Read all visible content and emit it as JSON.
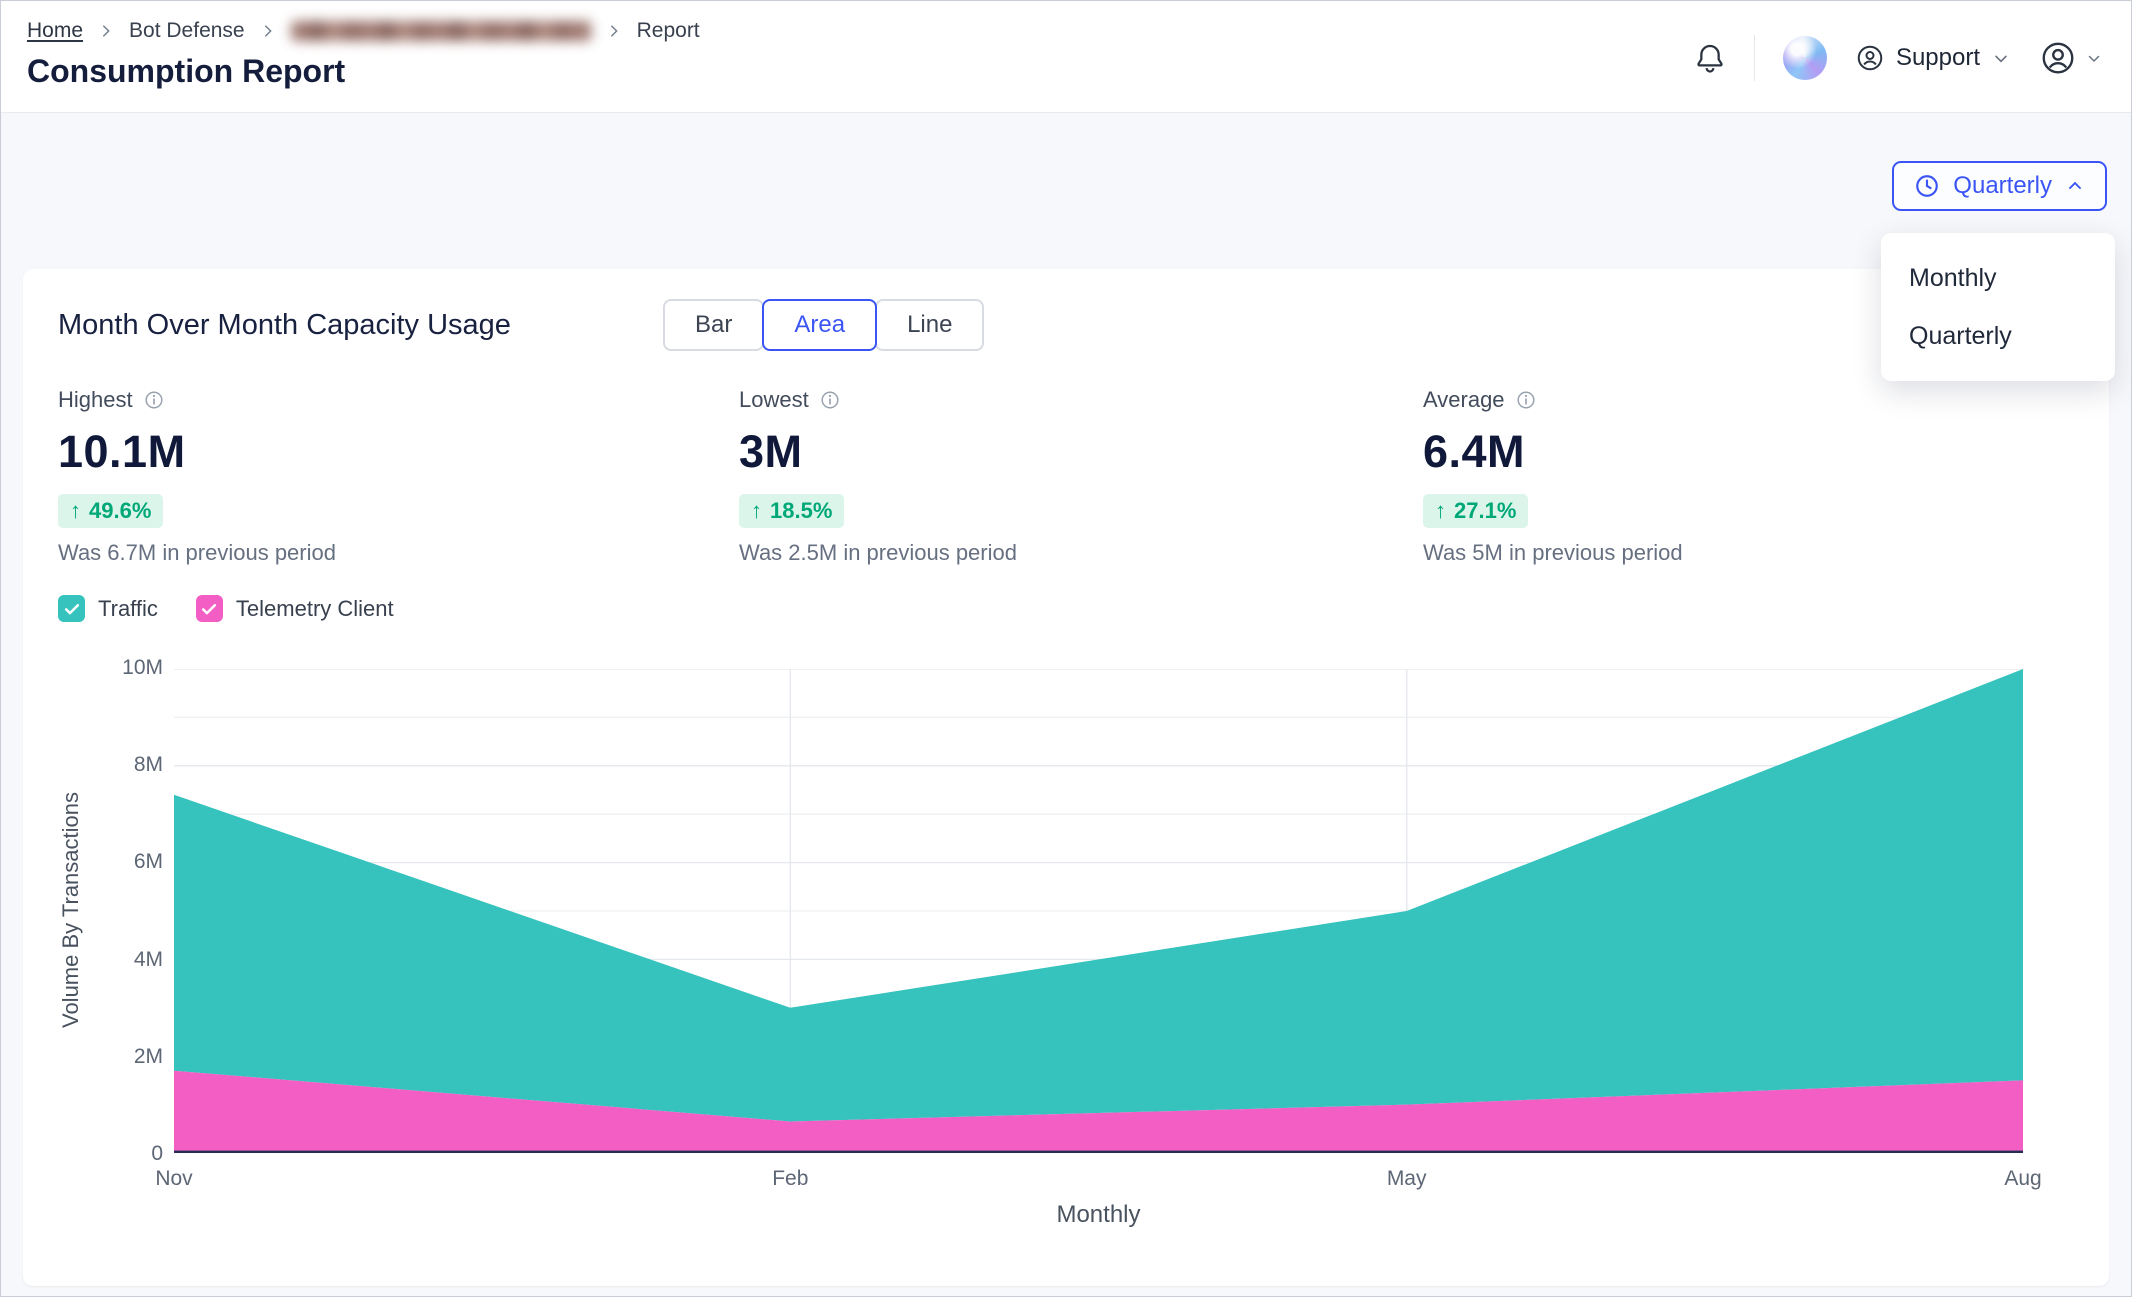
{
  "colors": {
    "accent": "#3B55F5",
    "positive": "#00A878",
    "positive_bg": "#DCF5EA",
    "teal": "#36C3BD",
    "pink": "#F25EC4",
    "navy": "#10193A"
  },
  "breadcrumb": {
    "items": [
      {
        "label": "Home"
      },
      {
        "label": "Bot Defense"
      },
      {
        "label": "",
        "redacted": true
      },
      {
        "label": "Report"
      }
    ]
  },
  "page": {
    "title": "Consumption Report"
  },
  "header": {
    "support_label": "Support"
  },
  "period_selector": {
    "button_label": "Quarterly",
    "menu_open": true,
    "options": [
      "Monthly",
      "Quarterly"
    ],
    "selected": "Quarterly"
  },
  "card": {
    "title": "Month Over Month Capacity Usage",
    "chart_type_toggle": {
      "options": [
        "Bar",
        "Area",
        "Line"
      ],
      "selected": "Area"
    },
    "stats": [
      {
        "label": "Highest",
        "value": "10.1M",
        "change": "49.6%",
        "direction": "up",
        "note": "Was 6.7M in previous period"
      },
      {
        "label": "Lowest",
        "value": "3M",
        "change": "18.5%",
        "direction": "up",
        "note": "Was 2.5M in previous period"
      },
      {
        "label": "Average",
        "value": "6.4M",
        "change": "27.1%",
        "direction": "up",
        "note": "Was 5M in previous period"
      }
    ],
    "legend": [
      {
        "label": "Traffic",
        "color": "#36C3BD",
        "checked": true
      },
      {
        "label": "Telemetry Client",
        "color": "#F25EC4",
        "checked": true
      }
    ]
  },
  "chart_data": {
    "type": "area",
    "stacked": true,
    "x": [
      "Nov",
      "Feb",
      "May",
      "Aug"
    ],
    "series": [
      {
        "name": "Telemetry Client",
        "color": "#F25EC4",
        "values": [
          1.7,
          0.65,
          1.0,
          1.5
        ]
      },
      {
        "name": "Traffic",
        "color": "#36C3BD",
        "values": [
          5.7,
          2.35,
          4.0,
          8.6
        ]
      }
    ],
    "totals": [
      7.4,
      3.0,
      5.0,
      10.1
    ],
    "xlabel": "Monthly",
    "ylabel": "Volume By Transactions",
    "ylim": [
      0,
      10
    ],
    "yticks": [
      "0",
      "2M",
      "4M",
      "6M",
      "8M",
      "10M"
    ],
    "grid": true,
    "units": "M",
    "legend_position": "top-left"
  }
}
